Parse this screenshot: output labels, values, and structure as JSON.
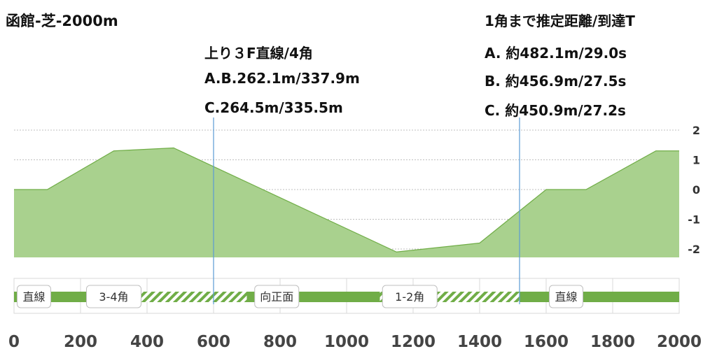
{
  "title": "函館-芝-2000m",
  "annotations": {
    "left": {
      "heading": "上り３F直線/4角",
      "lines": [
        "A.B.262.1m/337.9m",
        "C.264.5m/335.5m"
      ],
      "marker_x": 600
    },
    "right": {
      "heading": "1角まで推定距離/到達T",
      "lines": [
        "A. 約482.1m/29.0s",
        "B. 約456.9m/27.5s",
        "C. 約450.9m/27.2s"
      ],
      "marker_x": 1520
    }
  },
  "colors": {
    "area_fill": "#a9d18e",
    "area_stroke": "#70ad47",
    "track_green": "#70ad47",
    "marker_line": "#5b9bd5",
    "grid": "#bfbfbf"
  },
  "chart_data": {
    "type": "area",
    "title": "函館-芝-2000m",
    "xlim": [
      0,
      2000
    ],
    "ylim": [
      -2,
      2
    ],
    "x_ticks": [
      "0",
      "200",
      "400",
      "600",
      "800",
      "1000",
      "1200",
      "1400",
      "1600",
      "1800",
      "2000"
    ],
    "y_ticks": [
      "2",
      "1",
      "0",
      "-1",
      "-2"
    ],
    "elevation": {
      "x": [
        0,
        100,
        300,
        480,
        1150,
        1400,
        1600,
        1720,
        1930,
        2000
      ],
      "y": [
        0,
        0,
        1.3,
        1.4,
        -2.1,
        -1.8,
        0,
        0,
        1.3,
        1.3
      ]
    },
    "segments": [
      {
        "label": "直線",
        "start": 0,
        "end": 270,
        "style": "solid"
      },
      {
        "label": "3-4角",
        "start": 270,
        "end": 700,
        "style": "hatched"
      },
      {
        "label": "向正面",
        "start": 700,
        "end": 1100,
        "style": "solid"
      },
      {
        "label": "1-2角",
        "start": 1100,
        "end": 1520,
        "style": "hatched"
      },
      {
        "label": "直線",
        "start": 1520,
        "end": 2000,
        "style": "solid"
      }
    ],
    "segment_label_x": [
      0,
      270,
      700,
      1100,
      1520
    ],
    "segment_label_pos": [
      60,
      300,
      790,
      1190,
      1660
    ]
  }
}
